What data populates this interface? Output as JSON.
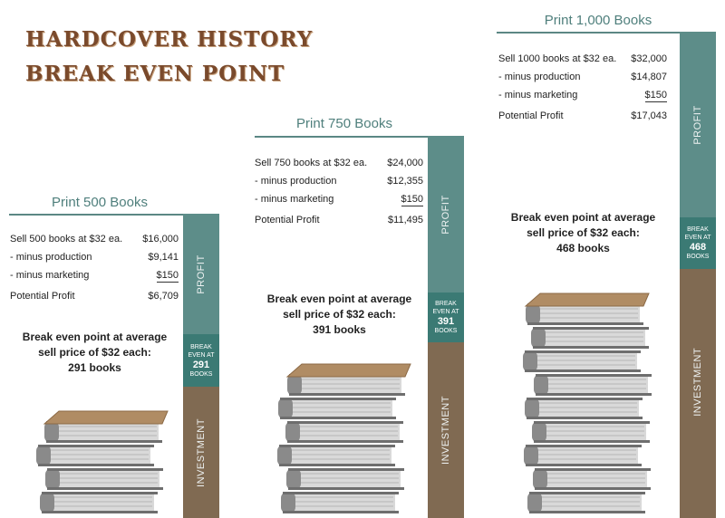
{
  "title": {
    "line1": "HARDCOVER HISTORY",
    "line2": "BREAK EVEN POINT"
  },
  "scenarios": [
    {
      "heading": "Print 500 Books",
      "rows": [
        {
          "label": "Sell 500 books at $32 ea.",
          "amount": "$16,000"
        },
        {
          "label": "- minus production",
          "amount": "$9,141"
        },
        {
          "label": "- minus marketing",
          "amount": "$150"
        }
      ],
      "total": {
        "label": "Potential Profit",
        "amount": "$6,709"
      },
      "break_even_text": [
        "Break even point at average",
        "sell price of $32 each:",
        "291 books"
      ],
      "bar": {
        "profit_label": "PROFIT",
        "be_label_1": "BREAK",
        "be_label_2": "EVEN AT",
        "be_value": "291",
        "be_label_3": "BOOKS",
        "investment_label": "INVESTMENT"
      },
      "stack_books": 4
    },
    {
      "heading": "Print 750 Books",
      "rows": [
        {
          "label": "Sell 750 books at $32 ea.",
          "amount": "$24,000"
        },
        {
          "label": "- minus production",
          "amount": "$12,355"
        },
        {
          "label": "- minus marketing",
          "amount": "$150"
        }
      ],
      "total": {
        "label": "Potential Profit",
        "amount": "$11,495"
      },
      "break_even_text": [
        "Break even point at average",
        "sell price of $32 each:",
        "391 books"
      ],
      "bar": {
        "profit_label": "PROFIT",
        "be_label_1": "BREAK",
        "be_label_2": "EVEN AT",
        "be_value": "391",
        "be_label_3": "BOOKS",
        "investment_label": "INVESTMENT"
      },
      "stack_books": 6
    },
    {
      "heading": "Print 1,000 Books",
      "rows": [
        {
          "label": "Sell 1000 books at $32 ea.",
          "amount": "$32,000"
        },
        {
          "label": "- minus production",
          "amount": "$14,807"
        },
        {
          "label": "- minus marketing",
          "amount": "$150"
        }
      ],
      "total": {
        "label": "Potential Profit",
        "amount": "$17,043"
      },
      "break_even_text": [
        "Break even point at average",
        "sell price of $32 each:",
        "468 books"
      ],
      "bar": {
        "profit_label": "PROFIT",
        "be_label_1": "BREAK",
        "be_label_2": "EVEN AT",
        "be_value": "468",
        "be_label_3": "BOOKS",
        "investment_label": "INVESTMENT"
      },
      "stack_books": 9
    }
  ],
  "colors": {
    "profit": "#5d8d89",
    "break_even": "#3b7a74",
    "investment": "#806a52",
    "book_cover": "#b08c64",
    "book_pages": "#8a8a8a"
  }
}
